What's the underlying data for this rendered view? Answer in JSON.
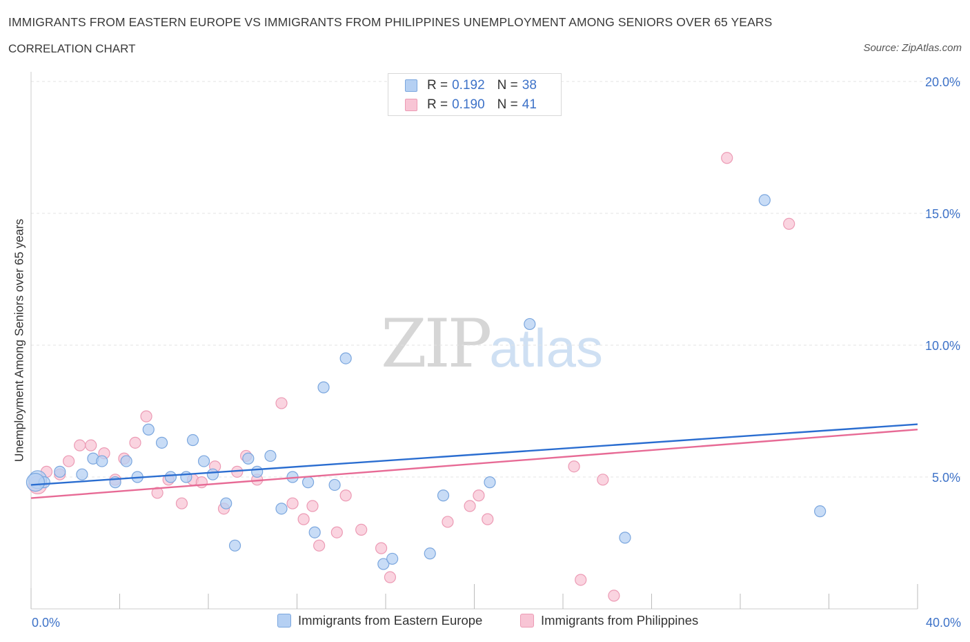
{
  "header": {
    "title": "IMMIGRANTS FROM EASTERN EUROPE VS IMMIGRANTS FROM PHILIPPINES UNEMPLOYMENT AMONG SENIORS OVER 65 YEARS",
    "subtitle": "CORRELATION CHART",
    "source": "Source: ZipAtlas.com"
  },
  "watermark": {
    "zip": "ZIP",
    "atlas": "atlas"
  },
  "legend": {
    "r_label": "R =",
    "n_label": "N =",
    "series1": {
      "r": "0.192",
      "n": "38"
    },
    "series2": {
      "r": "0.190",
      "n": "41"
    }
  },
  "colors": {
    "blue_fill": "#b5d0f3",
    "blue_stroke": "#7aa6de",
    "blue_line": "#2a6dd0",
    "pink_fill": "#f8c5d5",
    "pink_stroke": "#ec9ab4",
    "pink_line": "#e76a95",
    "tick_label": "#3d72c8",
    "grid": "#e3e3e3"
  },
  "chart_data": {
    "type": "scatter",
    "title": "IMMIGRANTS FROM EASTERN EUROPE VS IMMIGRANTS FROM PHILIPPINES UNEMPLOYMENT AMONG SENIORS OVER 65 YEARS",
    "xlabel": "",
    "ylabel": "Unemployment Among Seniors over 65 years",
    "xlim": [
      0,
      40
    ],
    "ylim": [
      0,
      20
    ],
    "x_tick_labels": {
      "min": "0.0%",
      "max": "40.0%"
    },
    "y_ticks": [
      {
        "value": 5,
        "label": "5.0%"
      },
      {
        "value": 10,
        "label": "10.0%"
      },
      {
        "value": 15,
        "label": "15.0%"
      },
      {
        "value": 20,
        "label": "20.0%"
      }
    ],
    "series": [
      {
        "name": "Immigrants from Eastern Europe",
        "color": "blue",
        "trend": {
          "x0": 0,
          "y0": 4.7,
          "x1": 40,
          "y1": 7.0
        },
        "points": [
          [
            0.3,
            4.9
          ],
          [
            0.6,
            4.8
          ],
          [
            1.3,
            5.2
          ],
          [
            2.3,
            5.1
          ],
          [
            2.8,
            5.7
          ],
          [
            3.2,
            5.6
          ],
          [
            3.8,
            4.8
          ],
          [
            4.3,
            5.6
          ],
          [
            4.8,
            5.0
          ],
          [
            5.3,
            6.8
          ],
          [
            5.9,
            6.3
          ],
          [
            6.3,
            5.0
          ],
          [
            7.0,
            5.0
          ],
          [
            7.3,
            6.4
          ],
          [
            7.8,
            5.6
          ],
          [
            8.2,
            5.1
          ],
          [
            8.8,
            4.0
          ],
          [
            9.2,
            2.4
          ],
          [
            9.8,
            5.7
          ],
          [
            10.2,
            5.2
          ],
          [
            10.8,
            5.8
          ],
          [
            11.3,
            3.8
          ],
          [
            11.8,
            5.0
          ],
          [
            12.5,
            4.8
          ],
          [
            12.8,
            2.9
          ],
          [
            13.2,
            8.4
          ],
          [
            13.7,
            4.7
          ],
          [
            14.2,
            9.5
          ],
          [
            15.9,
            1.7
          ],
          [
            16.3,
            1.9
          ],
          [
            18.0,
            2.1
          ],
          [
            18.6,
            4.3
          ],
          [
            20.7,
            4.8
          ],
          [
            22.5,
            10.8
          ],
          [
            26.8,
            2.7
          ],
          [
            33.1,
            15.5
          ],
          [
            35.6,
            3.7
          ],
          [
            0.2,
            4.8
          ]
        ]
      },
      {
        "name": "Immigrants from Philippines",
        "color": "pink",
        "trend": {
          "x0": 0,
          "y0": 4.2,
          "x1": 40,
          "y1": 6.8
        },
        "points": [
          [
            0.3,
            4.7
          ],
          [
            0.7,
            5.2
          ],
          [
            1.3,
            5.1
          ],
          [
            1.7,
            5.6
          ],
          [
            2.2,
            6.2
          ],
          [
            2.7,
            6.2
          ],
          [
            3.3,
            5.9
          ],
          [
            3.8,
            4.9
          ],
          [
            4.2,
            5.7
          ],
          [
            4.7,
            6.3
          ],
          [
            5.2,
            7.3
          ],
          [
            5.7,
            4.4
          ],
          [
            6.2,
            4.9
          ],
          [
            6.8,
            4.0
          ],
          [
            7.3,
            4.9
          ],
          [
            7.7,
            4.8
          ],
          [
            8.3,
            5.4
          ],
          [
            8.7,
            3.8
          ],
          [
            9.3,
            5.2
          ],
          [
            9.7,
            5.8
          ],
          [
            10.2,
            4.9
          ],
          [
            11.3,
            7.8
          ],
          [
            11.8,
            4.0
          ],
          [
            12.3,
            3.4
          ],
          [
            12.7,
            3.9
          ],
          [
            13.0,
            2.4
          ],
          [
            13.8,
            2.9
          ],
          [
            14.2,
            4.3
          ],
          [
            14.9,
            3.0
          ],
          [
            15.8,
            2.3
          ],
          [
            16.2,
            1.2
          ],
          [
            18.8,
            3.3
          ],
          [
            19.8,
            3.9
          ],
          [
            20.2,
            4.3
          ],
          [
            20.6,
            3.4
          ],
          [
            24.5,
            5.4
          ],
          [
            24.8,
            1.1
          ],
          [
            25.8,
            4.9
          ],
          [
            26.3,
            0.5
          ],
          [
            31.4,
            17.1
          ],
          [
            34.2,
            14.6
          ]
        ]
      }
    ]
  }
}
